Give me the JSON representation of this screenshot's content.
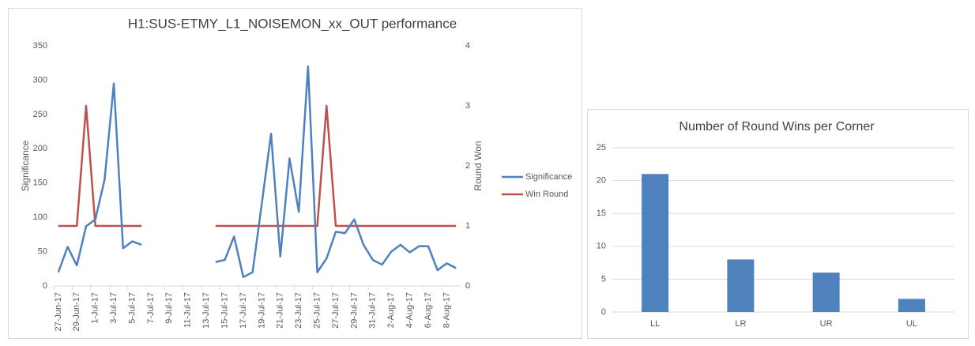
{
  "chart_data": [
    {
      "type": "line",
      "title": "H1:SUS-ETMY_L1_NOISEMON_xx_OUT performance",
      "y_label": "Significance",
      "y2_label": "Round Won",
      "categories": [
        "27-Jun-17",
        null,
        "29-Jun-17",
        null,
        "1-Jul-17",
        null,
        "3-Jul-17",
        null,
        "5-Jul-17",
        null,
        "7-Jul-17",
        null,
        "9-Jul-17",
        null,
        "11-Jul-17",
        null,
        "13-Jul-17",
        null,
        "15-Jul-17",
        null,
        "17-Jul-17",
        null,
        "19-Jul-17",
        null,
        "21-Jul-17",
        null,
        "23-Jul-17",
        null,
        "25-Jul-17",
        null,
        "27-Jul-17",
        null,
        "29-Jul-17",
        null,
        "31-Jul-17",
        null,
        "2-Aug-17",
        null,
        "4-Aug-17",
        null,
        "6-Aug-17",
        null,
        "8-Aug-17",
        null
      ],
      "series": [
        {
          "name": "Significance",
          "color": "#4f81bd",
          "axis": "y",
          "values": [
            20,
            57,
            30,
            87,
            97,
            155,
            295,
            55,
            65,
            60,
            null,
            null,
            null,
            null,
            null,
            null,
            null,
            35,
            38,
            72,
            13,
            20,
            120,
            222,
            43,
            186,
            108,
            320,
            20,
            40,
            79,
            77,
            97,
            60,
            38,
            31,
            50,
            60,
            49,
            58,
            58,
            23,
            33,
            26
          ]
        },
        {
          "name": "Win Round",
          "color": "#c0504d",
          "axis": "y2",
          "values": [
            1,
            1,
            1,
            3,
            1,
            1,
            1,
            1,
            1,
            1,
            null,
            null,
            null,
            null,
            null,
            null,
            null,
            1,
            1,
            1,
            1,
            1,
            1,
            1,
            1,
            1,
            1,
            1,
            1,
            3,
            1,
            1,
            1,
            1,
            1,
            1,
            1,
            1,
            1,
            1,
            1,
            1,
            1,
            1
          ]
        }
      ],
      "ylim": [
        0,
        350
      ],
      "yticks": [
        0,
        50,
        100,
        150,
        200,
        250,
        300,
        350
      ],
      "y2lim": [
        0,
        4
      ],
      "y2ticks": [
        0,
        1,
        2,
        3,
        4
      ],
      "grid": false,
      "legend": "right"
    },
    {
      "type": "bar",
      "title": "Number of Round Wins per Corner",
      "categories": [
        "LL",
        "LR",
        "UR",
        "UL"
      ],
      "values": [
        21,
        8,
        6,
        2
      ],
      "color": "#4f81bd",
      "ylim": [
        0,
        25
      ],
      "yticks": [
        0,
        5,
        10,
        15,
        20,
        25
      ],
      "grid": true
    }
  ]
}
